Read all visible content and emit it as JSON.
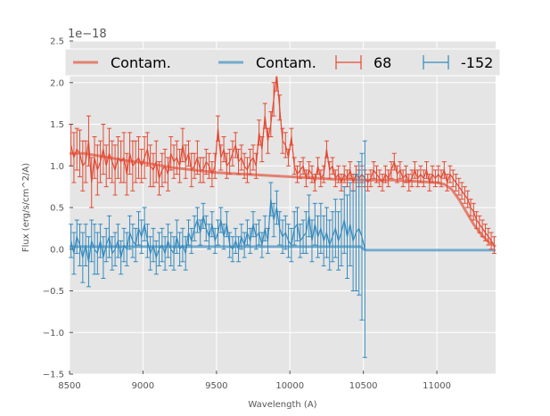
{
  "chart_data": {
    "type": "line",
    "xlabel": "Wavelength (A)",
    "ylabel": "Flux (erg/s/cm^2/A)",
    "y_offset_label": "1e−18",
    "xlim": [
      8500,
      11400
    ],
    "ylim": [
      -1.5,
      2.5
    ],
    "x_ticks": [
      8500,
      9000,
      9500,
      10000,
      10500,
      11000
    ],
    "x_tick_labels": [
      "8500",
      "9000",
      "9500",
      "10000",
      "10500",
      "11000"
    ],
    "y_ticks": [
      -1.5,
      -1.0,
      -0.5,
      0.0,
      0.5,
      1.0,
      1.5,
      2.0,
      2.5
    ],
    "y_tick_labels": [
      "−1.5",
      "−1.0",
      "−0.5",
      "0.0",
      "0.5",
      "1.0",
      "1.5",
      "2.0",
      "2.5"
    ],
    "grid": true,
    "legend_position": "top",
    "colors": {
      "red": "#e24a33",
      "blue": "#348abd",
      "background": "#e5e5e5",
      "grid": "#ffffff"
    },
    "contam_series": [
      {
        "name": "Contam.",
        "color": "#e24a33",
        "x": [
          8500,
          8600,
          8700,
          8800,
          8900,
          9000,
          9100,
          9200,
          9300,
          9400,
          9500,
          9600,
          9700,
          9800,
          9900,
          10000,
          10100,
          10200,
          10300,
          10400,
          10500,
          10600,
          10700,
          10800,
          10900,
          11000,
          11050,
          11100,
          11150,
          11200,
          11250,
          11300,
          11350,
          11400
        ],
        "y": [
          1.15,
          1.15,
          1.12,
          1.09,
          1.06,
          1.04,
          1.01,
          0.98,
          0.96,
          0.94,
          0.92,
          0.91,
          0.9,
          0.89,
          0.88,
          0.87,
          0.86,
          0.85,
          0.84,
          0.84,
          0.83,
          0.83,
          0.83,
          0.82,
          0.81,
          0.8,
          0.78,
          0.72,
          0.6,
          0.45,
          0.3,
          0.18,
          0.09,
          0.03
        ]
      },
      {
        "name": "Contam.",
        "color": "#348abd",
        "x": [
          8500,
          8700,
          8900,
          9100,
          9300,
          9500,
          9700,
          9900,
          10100,
          10300,
          10480,
          10500,
          10520,
          10600,
          11000,
          11400
        ],
        "y": [
          0.03,
          0.03,
          0.03,
          0.03,
          0.03,
          0.03,
          0.03,
          0.03,
          0.03,
          0.03,
          0.03,
          0.0,
          -0.01,
          -0.01,
          -0.01,
          -0.01
        ]
      }
    ],
    "error_series": [
      {
        "name": "68",
        "color": "#e24a33",
        "x": [
          8510,
          8530,
          8550,
          8570,
          8590,
          8610,
          8630,
          8650,
          8670,
          8690,
          8710,
          8730,
          8750,
          8770,
          8790,
          8810,
          8830,
          8850,
          8870,
          8890,
          8910,
          8930,
          8950,
          8970,
          8990,
          9010,
          9030,
          9050,
          9070,
          9090,
          9110,
          9130,
          9150,
          9170,
          9190,
          9210,
          9230,
          9250,
          9270,
          9290,
          9310,
          9330,
          9350,
          9370,
          9390,
          9410,
          9430,
          9450,
          9470,
          9490,
          9510,
          9530,
          9550,
          9570,
          9590,
          9610,
          9630,
          9650,
          9670,
          9690,
          9710,
          9730,
          9750,
          9770,
          9790,
          9810,
          9830,
          9850,
          9870,
          9890,
          9910,
          9930,
          9950,
          9970,
          9990,
          10010,
          10030,
          10050,
          10070,
          10090,
          10110,
          10130,
          10150,
          10170,
          10190,
          10210,
          10230,
          10250,
          10270,
          10290,
          10310,
          10330,
          10350,
          10370,
          10390,
          10410,
          10430,
          10450,
          10470,
          10490,
          10510,
          10530,
          10550,
          10570,
          10590,
          10610,
          10630,
          10650,
          10670,
          10690,
          10710,
          10730,
          10750,
          10770,
          10790,
          10810,
          10830,
          10850,
          10870,
          10890,
          10910,
          10930,
          10950,
          10970,
          10990,
          11010,
          11030,
          11050,
          11070,
          11090,
          11110,
          11130,
          11150,
          11170,
          11190,
          11210,
          11230,
          11250,
          11270,
          11290,
          11310,
          11330,
          11350,
          11370,
          11390
        ],
        "y": [
          1.25,
          1.1,
          1.2,
          1.15,
          1.0,
          1.05,
          1.3,
          0.8,
          1.1,
          0.95,
          1.05,
          1.2,
          1.0,
          1.15,
          1.05,
          0.95,
          1.1,
          1.05,
          1.1,
          0.9,
          1.15,
          1.0,
          1.05,
          1.1,
          1.0,
          1.1,
          1.2,
          1.0,
          0.95,
          1.05,
          0.85,
          0.95,
          1.0,
          0.9,
          1.15,
          1.05,
          1.1,
          1.0,
          1.25,
          1.05,
          1.15,
          0.95,
          1.0,
          1.1,
          0.95,
          0.95,
          1.05,
          1.0,
          0.9,
          1.0,
          1.45,
          1.1,
          1.2,
          1.0,
          1.05,
          1.15,
          1.25,
          1.05,
          1.1,
          1.0,
          0.95,
          1.05,
          1.1,
          1.0,
          1.4,
          1.2,
          1.6,
          1.3,
          1.5,
          1.8,
          2.1,
          1.7,
          1.3,
          1.25,
          1.1,
          1.35,
          1.0,
          0.9,
          0.95,
          1.0,
          0.85,
          0.95,
          0.9,
          0.8,
          1.0,
          0.85,
          0.9,
          1.2,
          0.95,
          1.0,
          0.85,
          0.9,
          0.8,
          0.9,
          0.85,
          0.95,
          0.8,
          0.9,
          0.85,
          0.9,
          0.85,
          0.8,
          0.85,
          0.95,
          0.9,
          0.85,
          0.8,
          0.9,
          0.85,
          0.95,
          1.05,
          0.9,
          0.95,
          0.85,
          0.9,
          0.8,
          0.85,
          0.95,
          0.85,
          0.9,
          0.85,
          0.95,
          0.8,
          0.9,
          0.85,
          0.9,
          0.85,
          0.95,
          0.8,
          0.9,
          0.85,
          0.8,
          0.75,
          0.7,
          0.65,
          0.6,
          0.5,
          0.45,
          0.35,
          0.3,
          0.25,
          0.2,
          0.15,
          0.1,
          0.05
        ],
        "err": [
          0.25,
          0.3,
          0.25,
          0.28,
          0.3,
          0.25,
          0.3,
          0.3,
          0.25,
          0.3,
          0.25,
          0.3,
          0.25,
          0.3,
          0.25,
          0.3,
          0.25,
          0.25,
          0.3,
          0.25,
          0.25,
          0.3,
          0.25,
          0.25,
          0.2,
          0.25,
          0.2,
          0.25,
          0.2,
          0.25,
          0.2,
          0.2,
          0.2,
          0.2,
          0.2,
          0.2,
          0.2,
          0.2,
          0.2,
          0.2,
          0.15,
          0.2,
          0.15,
          0.2,
          0.15,
          0.15,
          0.15,
          0.15,
          0.15,
          0.15,
          0.15,
          0.15,
          0.15,
          0.15,
          0.15,
          0.15,
          0.15,
          0.15,
          0.15,
          0.15,
          0.15,
          0.15,
          0.15,
          0.15,
          0.15,
          0.15,
          0.15,
          0.15,
          0.15,
          0.2,
          0.2,
          0.15,
          0.15,
          0.15,
          0.1,
          0.1,
          0.1,
          0.1,
          0.1,
          0.1,
          0.1,
          0.1,
          0.1,
          0.1,
          0.1,
          0.1,
          0.1,
          0.1,
          0.1,
          0.1,
          0.1,
          0.1,
          0.1,
          0.1,
          0.1,
          0.1,
          0.1,
          0.1,
          0.1,
          0.1,
          0.1,
          0.1,
          0.1,
          0.1,
          0.1,
          0.1,
          0.1,
          0.1,
          0.1,
          0.1,
          0.1,
          0.1,
          0.1,
          0.1,
          0.1,
          0.1,
          0.1,
          0.1,
          0.1,
          0.1,
          0.1,
          0.1,
          0.1,
          0.1,
          0.1,
          0.1,
          0.1,
          0.1,
          0.1,
          0.1,
          0.1,
          0.1,
          0.1,
          0.1,
          0.1,
          0.1,
          0.1,
          0.1,
          0.1,
          0.1,
          0.1,
          0.1,
          0.1,
          0.1,
          0.1
        ]
      },
      {
        "name": "-152",
        "color": "#348abd",
        "x": [
          8510,
          8530,
          8550,
          8570,
          8590,
          8610,
          8630,
          8650,
          8670,
          8690,
          8710,
          8730,
          8750,
          8770,
          8790,
          8810,
          8830,
          8850,
          8870,
          8890,
          8910,
          8930,
          8950,
          8970,
          8990,
          9010,
          9030,
          9050,
          9070,
          9090,
          9110,
          9130,
          9150,
          9170,
          9190,
          9210,
          9230,
          9250,
          9270,
          9290,
          9310,
          9330,
          9350,
          9370,
          9390,
          9410,
          9430,
          9450,
          9470,
          9490,
          9510,
          9530,
          9550,
          9570,
          9590,
          9610,
          9630,
          9650,
          9670,
          9690,
          9710,
          9730,
          9750,
          9770,
          9790,
          9810,
          9830,
          9850,
          9870,
          9890,
          9910,
          9930,
          9950,
          9970,
          9990,
          10010,
          10030,
          10050,
          10070,
          10090,
          10110,
          10130,
          10150,
          10170,
          10190,
          10210,
          10230,
          10250,
          10270,
          10290,
          10310,
          10330,
          10350,
          10370,
          10390,
          10410,
          10430,
          10450,
          10470,
          10490,
          10510
        ],
        "y": [
          0.1,
          -0.05,
          0.15,
          0.05,
          -0.1,
          0.05,
          -0.15,
          0.1,
          0.0,
          -0.05,
          0.1,
          -0.1,
          0.05,
          0.15,
          -0.05,
          0.0,
          0.1,
          -0.1,
          0.05,
          0.0,
          0.2,
          0.1,
          0.05,
          0.25,
          0.15,
          0.3,
          0.1,
          -0.05,
          0.05,
          -0.1,
          0.0,
          0.05,
          -0.05,
          0.1,
          0.0,
          -0.05,
          0.15,
          0.0,
          0.05,
          -0.05,
          0.2,
          0.1,
          0.25,
          0.35,
          0.2,
          0.4,
          0.25,
          0.15,
          0.3,
          0.1,
          0.2,
          0.35,
          0.15,
          0.3,
          0.05,
          0.0,
          0.1,
          0.0,
          0.15,
          0.05,
          0.2,
          0.1,
          0.3,
          0.15,
          0.2,
          0.05,
          0.25,
          0.1,
          0.6,
          0.35,
          0.5,
          0.25,
          0.15,
          0.2,
          0.1,
          0.05,
          0.25,
          0.3,
          0.1,
          0.15,
          0.2,
          0.4,
          0.1,
          0.3,
          0.15,
          0.25,
          0.1,
          0.2,
          0.05,
          0.15,
          0.25,
          0.1,
          0.2,
          0.35,
          0.15,
          0.3,
          0.1,
          0.2,
          0.25,
          0.15,
          0.0
        ],
        "err": [
          0.2,
          0.25,
          0.2,
          0.25,
          0.3,
          0.25,
          0.3,
          0.25,
          0.3,
          0.25,
          0.2,
          0.25,
          0.2,
          0.25,
          0.2,
          0.2,
          0.2,
          0.2,
          0.2,
          0.2,
          0.2,
          0.2,
          0.2,
          0.2,
          0.2,
          0.2,
          0.2,
          0.2,
          0.2,
          0.2,
          0.2,
          0.2,
          0.2,
          0.2,
          0.2,
          0.2,
          0.2,
          0.2,
          0.2,
          0.2,
          0.15,
          0.15,
          0.15,
          0.15,
          0.15,
          0.15,
          0.15,
          0.15,
          0.15,
          0.15,
          0.15,
          0.15,
          0.15,
          0.15,
          0.15,
          0.15,
          0.15,
          0.15,
          0.15,
          0.15,
          0.15,
          0.15,
          0.15,
          0.15,
          0.15,
          0.15,
          0.15,
          0.15,
          0.2,
          0.2,
          0.2,
          0.2,
          0.2,
          0.2,
          0.2,
          0.2,
          0.2,
          0.2,
          0.2,
          0.2,
          0.25,
          0.25,
          0.25,
          0.25,
          0.25,
          0.3,
          0.3,
          0.3,
          0.3,
          0.3,
          0.35,
          0.35,
          0.4,
          0.4,
          0.5,
          0.5,
          0.6,
          0.7,
          0.8,
          1.0,
          1.3
        ]
      }
    ],
    "legend": [
      {
        "label": "Contam.",
        "kind": "line",
        "color": "#e24a33"
      },
      {
        "label": "Contam.",
        "kind": "line",
        "color": "#348abd"
      },
      {
        "label": "68",
        "kind": "errorbar",
        "color": "#e24a33"
      },
      {
        "label": "-152",
        "kind": "errorbar",
        "color": "#348abd"
      }
    ]
  }
}
